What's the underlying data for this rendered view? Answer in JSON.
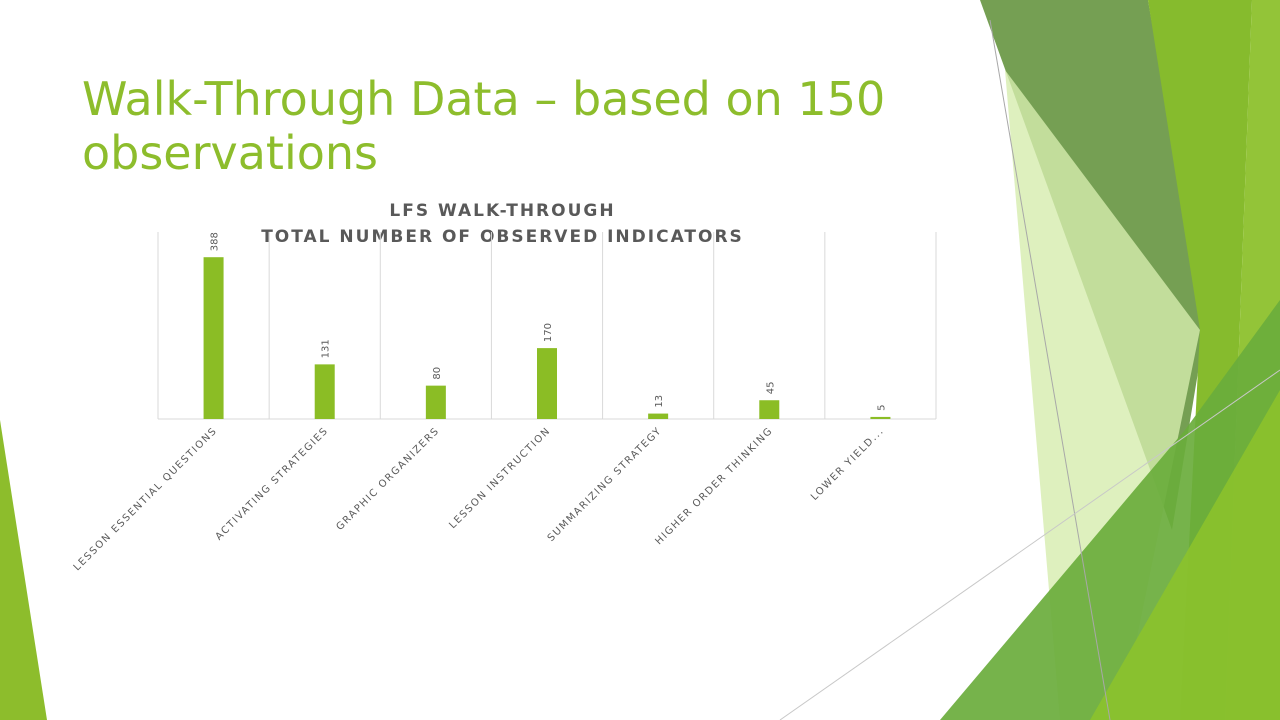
{
  "slide": {
    "title": "Walk-Through Data – based on 150 observations"
  },
  "theme": {
    "accent": "#8dbd2c",
    "bar_color": "#8bbd25",
    "text_color": "#595959",
    "grid_color": "#d9d9d9"
  },
  "chart_data": {
    "type": "bar",
    "title": "LFS WALK-THROUGH",
    "subtitle": "TOTAL NUMBER OF OBSERVED INDICATORS",
    "categories": [
      "LESSON ESSENTIAL QUESTIONS",
      "ACTIVATING STRATEGIES",
      "GRAPHIC ORGANIZERS",
      "LESSON INSTRUCTION",
      "SUMMARIZING STRATEGY",
      "HIGHER ORDER THINKING",
      "LOWER YIELD..."
    ],
    "values": [
      388,
      131,
      80,
      170,
      13,
      45,
      5
    ],
    "data_labels": [
      "388",
      "131",
      "80",
      "170",
      "13",
      "45",
      "5"
    ],
    "xlabel": "",
    "ylabel": "",
    "ylim": [
      0,
      450
    ],
    "grid": "vertical category separators",
    "legend": "none",
    "value_axis_visible": false
  }
}
